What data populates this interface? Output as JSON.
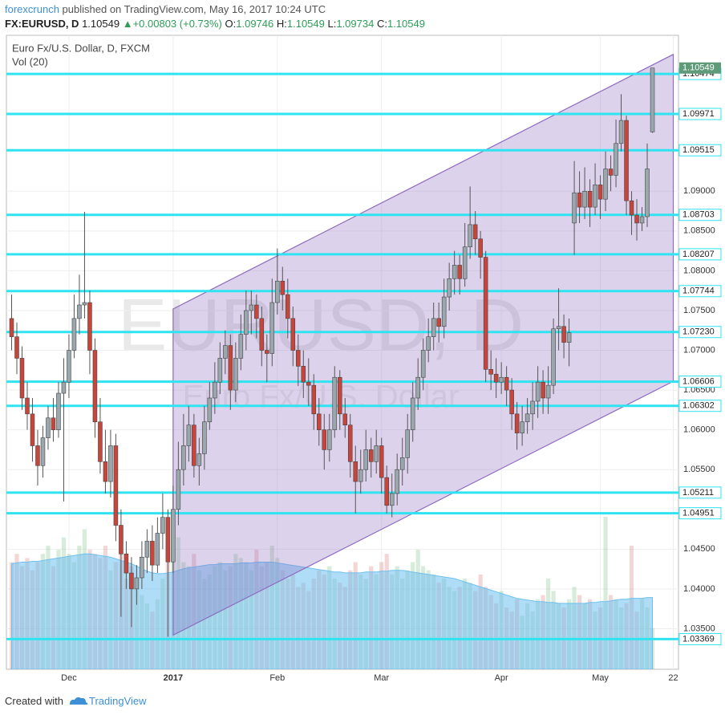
{
  "header": {
    "author": "forexcrunch",
    "published": "published on TradingView.com, May 16, 2017 10:24 UTC",
    "symbol": "FX:EURUSD, D",
    "last": "1.10549",
    "arrow": "▲",
    "change": "+0.00803 (+0.73%)",
    "o_key": "O:",
    "o": "1.09746",
    "h_key": "H:",
    "h": "1.10549",
    "l_key": "L:",
    "l": "1.09734",
    "c_key": "C:",
    "c": "1.10549"
  },
  "footer": {
    "created": "Created with",
    "brand": "TradingView"
  },
  "chart_data": {
    "type": "candlestick",
    "title": "Euro Fx/U.S. Dollar, D, FXCM",
    "volume_title": "Vol (20)",
    "watermark": {
      "symbol": "EURUSD, D",
      "name": "Euro Fx/U.S. Dollar"
    },
    "up_color": "#9aa8ad",
    "down_color": "#c8453b",
    "open": [
      1.074,
      1.0717,
      1.069,
      1.064,
      1.062,
      1.058,
      1.0555,
      1.059,
      1.0615,
      1.06,
      1.0646,
      1.066,
      1.07,
      1.074,
      1.0757,
      1.076,
      1.07,
      1.061,
      1.056,
      1.0535,
      1.058,
      1.048,
      1.0444,
      1.042,
      1.04,
      1.0414,
      1.044,
      1.046,
      1.043,
      1.047,
      1.049,
      1.0434,
      1.05,
      1.055,
      1.058,
      1.0606,
      1.0555,
      1.057,
      1.061,
      1.064,
      1.066,
      1.069,
      1.0706,
      1.065,
      1.069,
      1.072,
      1.075,
      1.0757,
      1.074,
      1.07,
      1.0696,
      1.076,
      1.0787,
      1.077,
      1.074,
      1.07,
      1.068,
      1.066,
      1.0656,
      1.062,
      1.06,
      1.0575,
      1.06,
      1.0666,
      1.062,
      1.0606,
      1.056,
      1.0535,
      1.055,
      1.0575,
      1.056,
      1.058,
      1.054,
      1.0505,
      1.052,
      1.055,
      1.0565,
      1.06,
      1.064,
      1.0666,
      1.07,
      1.0717,
      1.074,
      1.073,
      1.0767,
      1.079,
      1.0807,
      1.079,
      1.083,
      1.0858,
      1.084,
      1.0817,
      1.0676,
      1.067,
      1.066,
      1.0666,
      1.065,
      1.062,
      1.0596,
      1.061,
      1.062,
      1.0636,
      1.066,
      1.064,
      1.0656,
      1.0727,
      1.073,
      1.071,
      1.086,
      1.0898,
      1.088,
      1.09,
      1.088,
      1.0908,
      1.089,
      1.0928,
      1.092,
      1.096,
      1.0989,
      1.0888,
      1.087,
      1.086,
      1.0868,
      1.09746
    ],
    "high": [
      1.077,
      1.0735,
      1.0705,
      1.066,
      1.064,
      1.06,
      1.0605,
      1.063,
      1.064,
      1.066,
      1.069,
      1.072,
      1.077,
      1.0795,
      1.0874,
      1.0775,
      1.0715,
      1.064,
      1.06,
      1.06,
      1.0595,
      1.05,
      1.046,
      1.044,
      1.043,
      1.046,
      1.0475,
      1.048,
      1.049,
      1.052,
      1.05,
      1.053,
      1.0585,
      1.062,
      1.063,
      1.062,
      1.059,
      1.063,
      1.066,
      1.0685,
      1.071,
      1.0725,
      1.072,
      1.071,
      1.0745,
      1.0775,
      1.0775,
      1.077,
      1.0755,
      1.072,
      1.079,
      1.0828,
      1.0805,
      1.079,
      1.0755,
      1.072,
      1.07,
      1.069,
      1.067,
      1.064,
      1.062,
      1.062,
      1.068,
      1.0675,
      1.064,
      1.062,
      1.058,
      1.0575,
      1.06,
      1.059,
      1.06,
      1.059,
      1.0555,
      1.0545,
      1.057,
      1.059,
      1.062,
      1.066,
      1.069,
      1.0715,
      1.074,
      1.076,
      1.076,
      1.079,
      1.081,
      1.0825,
      1.082,
      1.086,
      1.0906,
      1.0875,
      1.085,
      1.0825,
      1.07,
      1.069,
      1.0685,
      1.068,
      1.0665,
      1.0635,
      1.063,
      1.064,
      1.066,
      1.068,
      1.0675,
      1.068,
      1.074,
      1.0778,
      1.0745,
      1.074,
      1.0938,
      1.0925,
      1.093,
      1.0915,
      1.0935,
      1.092,
      1.095,
      1.0945,
      1.099,
      1.1022,
      1.0995,
      1.09,
      1.089,
      1.088,
      1.096,
      1.10549
    ],
    "low": [
      1.07,
      1.067,
      1.0625,
      1.06,
      1.056,
      1.053,
      1.054,
      1.0575,
      1.0585,
      1.059,
      1.051,
      1.064,
      1.069,
      1.072,
      1.074,
      1.067,
      1.059,
      1.0545,
      1.052,
      1.0515,
      1.046,
      1.0365,
      1.04,
      1.0352,
      1.038,
      1.04,
      1.042,
      1.041,
      1.042,
      1.045,
      1.034,
      1.042,
      1.048,
      1.053,
      1.056,
      1.054,
      1.053,
      1.055,
      1.06,
      1.062,
      1.0645,
      1.067,
      1.0625,
      1.0635,
      1.0675,
      1.07,
      1.072,
      1.0715,
      1.068,
      1.066,
      1.068,
      1.0745,
      1.075,
      1.0715,
      1.068,
      1.0655,
      1.064,
      1.063,
      1.06,
      1.058,
      1.055,
      1.056,
      1.059,
      1.06,
      1.059,
      1.054,
      1.0495,
      1.052,
      1.0535,
      1.054,
      1.0545,
      1.052,
      1.0495,
      1.049,
      1.0505,
      1.053,
      1.0545,
      1.0585,
      1.0625,
      1.065,
      1.0685,
      1.07,
      1.071,
      1.0715,
      1.075,
      1.077,
      1.077,
      1.078,
      1.0815,
      1.082,
      1.079,
      1.066,
      1.065,
      1.064,
      1.0645,
      1.063,
      1.06,
      1.0575,
      1.058,
      1.0595,
      1.06,
      1.0615,
      1.062,
      1.062,
      1.0645,
      1.07,
      1.069,
      1.068,
      1.082,
      1.086,
      1.0865,
      1.0855,
      1.087,
      1.0865,
      1.0875,
      1.09,
      1.0905,
      1.095,
      1.087,
      1.0845,
      1.0838,
      1.085,
      1.0855,
      1.09734
    ],
    "close": [
      1.0717,
      1.069,
      1.064,
      1.062,
      1.058,
      1.0555,
      1.059,
      1.0615,
      1.06,
      1.0646,
      1.066,
      1.07,
      1.074,
      1.0757,
      1.076,
      1.07,
      1.061,
      1.056,
      1.0535,
      1.058,
      1.048,
      1.0444,
      1.042,
      1.04,
      1.0414,
      1.044,
      1.046,
      1.043,
      1.047,
      1.049,
      1.0434,
      1.05,
      1.055,
      1.058,
      1.0606,
      1.0555,
      1.057,
      1.061,
      1.064,
      1.066,
      1.069,
      1.0706,
      1.065,
      1.069,
      1.072,
      1.075,
      1.0757,
      1.074,
      1.07,
      1.0696,
      1.076,
      1.0787,
      1.077,
      1.074,
      1.07,
      1.068,
      1.066,
      1.0656,
      1.062,
      1.06,
      1.0575,
      1.06,
      1.0666,
      1.062,
      1.0606,
      1.056,
      1.0535,
      1.055,
      1.0575,
      1.056,
      1.058,
      1.054,
      1.0505,
      1.052,
      1.055,
      1.0565,
      1.06,
      1.064,
      1.0666,
      1.07,
      1.0717,
      1.074,
      1.073,
      1.0767,
      1.079,
      1.0807,
      1.079,
      1.083,
      1.0858,
      1.084,
      1.0817,
      1.0676,
      1.067,
      1.066,
      1.0666,
      1.065,
      1.062,
      1.0596,
      1.061,
      1.062,
      1.0636,
      1.066,
      1.064,
      1.0656,
      1.0727,
      1.073,
      1.071,
      1.0722,
      1.0898,
      1.088,
      1.09,
      1.088,
      1.0908,
      1.089,
      1.0928,
      1.092,
      1.096,
      1.0989,
      1.0888,
      1.087,
      1.086,
      1.0868,
      1.0928,
      1.10549
    ],
    "volume": [
      130,
      140,
      125,
      135,
      120,
      130,
      140,
      150,
      125,
      145,
      160,
      140,
      130,
      150,
      170,
      145,
      140,
      135,
      150,
      120,
      130,
      140,
      110,
      125,
      100,
      90,
      80,
      70,
      85,
      110,
      140,
      150,
      160,
      130,
      125,
      140,
      120,
      110,
      115,
      125,
      130,
      120,
      125,
      140,
      135,
      130,
      120,
      145,
      125,
      130,
      150,
      135,
      120,
      110,
      115,
      100,
      105,
      95,
      110,
      120,
      115,
      125,
      110,
      105,
      100,
      120,
      130,
      115,
      110,
      125,
      115,
      130,
      140,
      115,
      125,
      110,
      120,
      130,
      145,
      125,
      120,
      115,
      105,
      110,
      100,
      95,
      100,
      110,
      105,
      95,
      115,
      100,
      90,
      80,
      95,
      75,
      70,
      85,
      65,
      80,
      70,
      85,
      90,
      110,
      95,
      80,
      75,
      85,
      100,
      90,
      80,
      85,
      70,
      75,
      185,
      90,
      85,
      75,
      80,
      150,
      70,
      85,
      75,
      50
    ],
    "volume_ma": [
      128,
      129,
      130,
      130,
      131,
      131,
      132,
      133,
      134,
      135,
      136,
      137,
      138,
      139,
      140,
      140,
      139,
      138,
      137,
      136,
      134,
      132,
      130,
      128,
      125,
      122,
      119,
      117,
      116,
      116,
      117,
      118,
      120,
      122,
      123,
      124,
      125,
      126,
      127,
      127,
      128,
      128,
      128,
      128,
      129,
      129,
      129,
      130,
      130,
      130,
      130,
      129,
      128,
      127,
      126,
      125,
      124,
      123,
      122,
      121,
      120,
      119,
      118,
      118,
      117,
      117,
      117,
      117,
      118,
      118,
      118,
      119,
      119,
      120,
      120,
      120,
      119,
      118,
      117,
      116,
      115,
      114,
      113,
      112,
      111,
      110,
      108,
      106,
      104,
      102,
      100,
      98,
      96,
      94,
      92,
      90,
      88,
      86,
      85,
      84,
      83,
      82,
      82,
      81,
      81,
      80,
      80,
      80,
      80,
      80,
      80,
      81,
      81,
      82,
      82,
      83,
      84,
      85,
      85,
      86,
      86,
      86,
      87,
      87
    ],
    "volume_ma_color": "#6ec0ee",
    "channel": {
      "x": [
        31,
        127
      ],
      "upper": [
        1.0752,
        1.1072
      ],
      "lower": [
        1.0342,
        1.0661
      ],
      "color": "#8e6bbf"
    },
    "levels": [
      {
        "value": 1.10474,
        "label": "1.10474"
      },
      {
        "value": 1.09971,
        "label": "1.09971"
      },
      {
        "value": 1.09515,
        "label": "1.09515"
      },
      {
        "value": 1.08703,
        "label": "1.08703"
      },
      {
        "value": 1.08207,
        "label": "1.08207"
      },
      {
        "value": 1.07744,
        "label": "1.07744"
      },
      {
        "value": 1.0723,
        "label": "1.07230"
      },
      {
        "value": 1.06606,
        "label": "1.06606"
      },
      {
        "value": 1.06302,
        "label": "1.06302"
      },
      {
        "value": 1.05211,
        "label": "1.05211"
      },
      {
        "value": 1.04951,
        "label": "1.04951"
      },
      {
        "value": 1.03369,
        "label": "1.03369"
      }
    ],
    "level_color": "#2fe3f0",
    "last_price": {
      "value": 1.10549,
      "label": "1.10549",
      "color": "#5f9b78"
    },
    "ylim": [
      1.0299,
      1.1096
    ],
    "yticks": [
      {
        "value": 1.035,
        "label": "1.03500"
      },
      {
        "value": 1.04,
        "label": "1.04000"
      },
      {
        "value": 1.045,
        "label": "1.04500"
      },
      {
        "value": 1.055,
        "label": "1.05500"
      },
      {
        "value": 1.06,
        "label": "1.06000"
      },
      {
        "value": 1.065,
        "label": "1.06500"
      },
      {
        "value": 1.07,
        "label": "1.07000"
      },
      {
        "value": 1.075,
        "label": "1.07500"
      },
      {
        "value": 1.08,
        "label": "1.08000"
      },
      {
        "value": 1.085,
        "label": "1.08500"
      },
      {
        "value": 1.09,
        "label": "1.09000"
      }
    ],
    "xlim": [
      -1,
      128
    ],
    "xticks": [
      {
        "value": 11,
        "label": "Dec"
      },
      {
        "value": 31,
        "label": "2017"
      },
      {
        "value": 51,
        "label": "Feb"
      },
      {
        "value": 71,
        "label": "Mar"
      },
      {
        "value": 94,
        "label": "Apr"
      },
      {
        "value": 113,
        "label": "May"
      },
      {
        "value": 127,
        "label": "22"
      }
    ],
    "grid": true
  }
}
